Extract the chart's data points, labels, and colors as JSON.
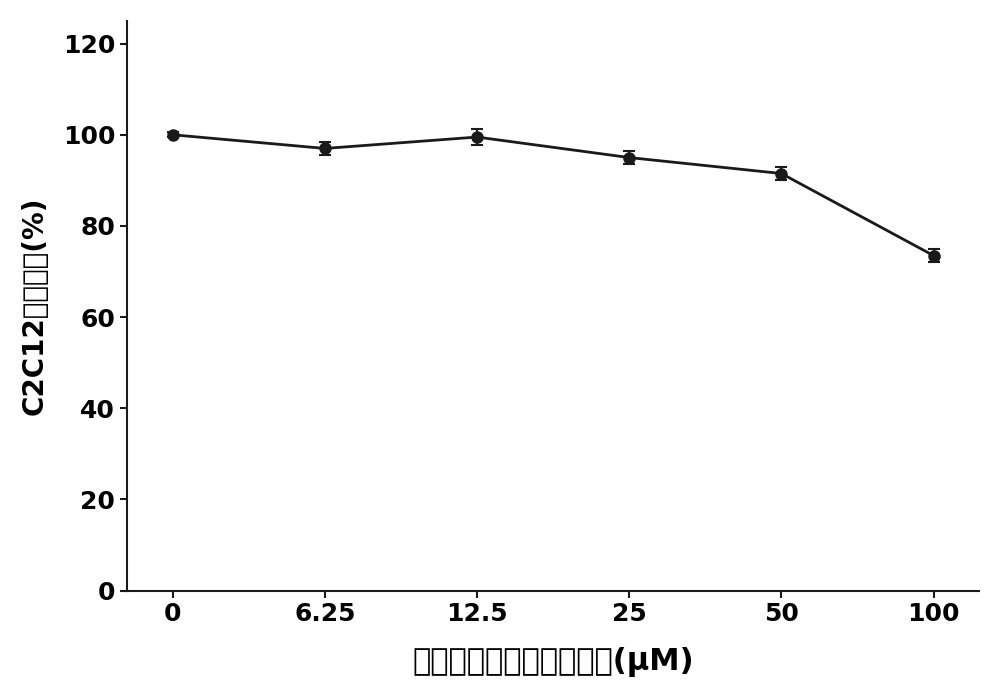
{
  "x_positions": [
    0,
    1,
    2,
    3,
    4,
    5
  ],
  "x_labels": [
    "0",
    "6.25",
    "12.5",
    "25",
    "50",
    "100"
  ],
  "y": [
    100.0,
    97.0,
    99.5,
    95.0,
    91.5,
    73.5
  ],
  "yerr": [
    0.5,
    1.5,
    1.8,
    1.5,
    1.5,
    1.5
  ],
  "xlabel": "双甲基氘代鼠尾草酚浓度(μM)",
  "ylabel": "C2C12细胞活力(%)",
  "ylim": [
    0,
    125
  ],
  "yticks": [
    0,
    20,
    40,
    60,
    80,
    100,
    120
  ],
  "line_color": "#1a1a1a",
  "marker_color": "#1a1a1a",
  "background_color": "#ffffff",
  "line_width": 2.0,
  "marker_size": 8,
  "capsize": 4,
  "xlabel_fontsize": 22,
  "ylabel_fontsize": 20,
  "tick_fontsize": 18
}
